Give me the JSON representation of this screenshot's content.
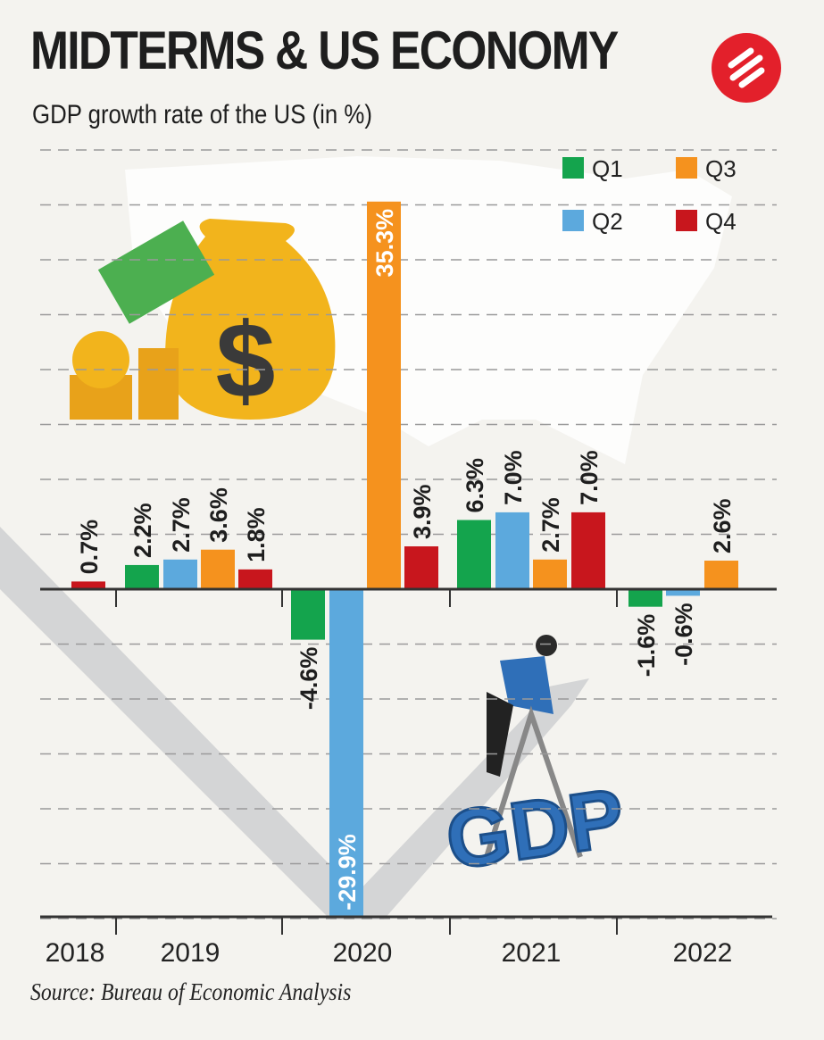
{
  "header": {
    "title": "MIDTERMS & US ECONOMY",
    "subtitle": "GDP growth rate of the US (in %)"
  },
  "source": "Source: Bureau of Economic Analysis",
  "colors": {
    "Q1": "#14a44d",
    "Q2": "#5ca9dd",
    "Q3": "#f5921e",
    "Q4": "#c8161d",
    "logo": "#e3202b"
  },
  "chart_data": {
    "type": "bar",
    "title": "GDP growth rate of the US (in %)",
    "legend": [
      "Q1",
      "Q2",
      "Q3",
      "Q4"
    ],
    "legend_position": "top-right",
    "ylim": [
      -30,
      40
    ],
    "grid": true,
    "years": [
      "2018",
      "2019",
      "2020",
      "2021",
      "2022"
    ],
    "bars": [
      {
        "year": "2018",
        "quarter": "Q4",
        "value": 0.7,
        "label": "0.7%"
      },
      {
        "year": "2019",
        "quarter": "Q1",
        "value": 2.2,
        "label": "2.2%"
      },
      {
        "year": "2019",
        "quarter": "Q2",
        "value": 2.7,
        "label": "2.7%"
      },
      {
        "year": "2019",
        "quarter": "Q3",
        "value": 3.6,
        "label": "3.6%"
      },
      {
        "year": "2019",
        "quarter": "Q4",
        "value": 1.8,
        "label": "1.8%"
      },
      {
        "year": "2020",
        "quarter": "Q1",
        "value": -4.6,
        "label": "-4.6%"
      },
      {
        "year": "2020",
        "quarter": "Q2",
        "value": -29.9,
        "label": "-29.9%"
      },
      {
        "year": "2020",
        "quarter": "Q3",
        "value": 35.3,
        "label": "35.3%"
      },
      {
        "year": "2020",
        "quarter": "Q4",
        "value": 3.9,
        "label": "3.9%"
      },
      {
        "year": "2021",
        "quarter": "Q1",
        "value": 6.3,
        "label": "6.3%"
      },
      {
        "year": "2021",
        "quarter": "Q2",
        "value": 7.0,
        "label": "7.0%"
      },
      {
        "year": "2021",
        "quarter": "Q3",
        "value": 2.7,
        "label": "2.7%"
      },
      {
        "year": "2021",
        "quarter": "Q4",
        "value": 7.0,
        "label": "7.0%"
      },
      {
        "year": "2022",
        "quarter": "Q1",
        "value": -1.6,
        "label": "-1.6%"
      },
      {
        "year": "2022",
        "quarter": "Q2",
        "value": -0.6,
        "label": "-0.6%"
      },
      {
        "year": "2022",
        "quarter": "Q3",
        "value": 2.6,
        "label": "2.6%"
      }
    ]
  },
  "illustration": {
    "text": "GDP",
    "icons": [
      "money-bag-icon",
      "dollar-bills-icon",
      "coin-stack-icon",
      "us-map",
      "trend-arrow",
      "businessman"
    ]
  }
}
